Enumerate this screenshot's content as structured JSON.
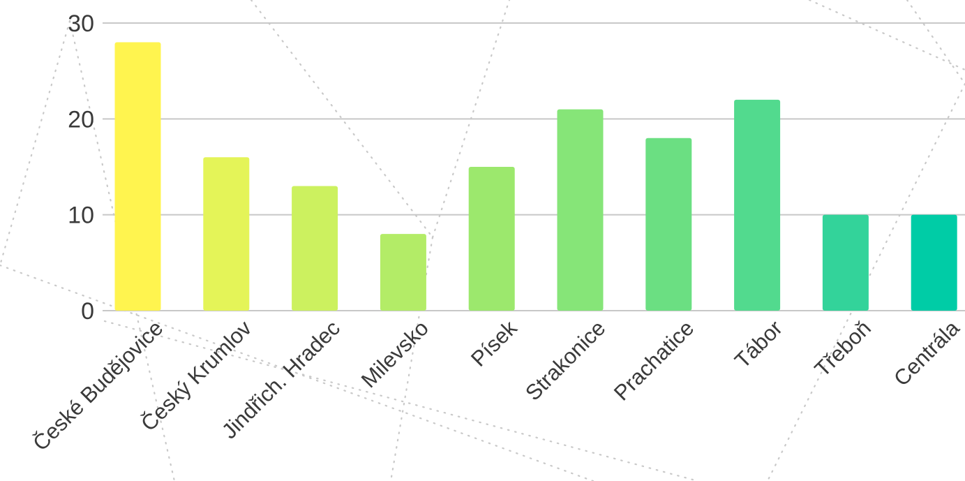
{
  "chart_data": {
    "type": "bar",
    "categories": [
      "České Budějovice",
      "Český Krumlov",
      "Jindřich. Hradec",
      "Milevsko",
      "Písek",
      "Strakonice",
      "Prachatice",
      "Tábor",
      "Třeboň",
      "Centrála"
    ],
    "values": [
      28,
      16,
      13,
      8,
      15,
      21,
      18,
      22,
      10,
      10
    ],
    "colors": [
      "#fff44f",
      "#e4f458",
      "#ccf15f",
      "#b3ec67",
      "#9ce86d",
      "#86e578",
      "#6bdf82",
      "#52da8e",
      "#33d39a",
      "#00cca6"
    ],
    "title": "",
    "xlabel": "",
    "ylabel": "",
    "ylim": [
      0,
      30
    ],
    "yticks": [
      "0",
      "10",
      "20",
      "30"
    ],
    "grid": true,
    "legend": "none"
  },
  "decor": {
    "background": "#ffffff",
    "pattern": "dotted-geometric-lines"
  }
}
